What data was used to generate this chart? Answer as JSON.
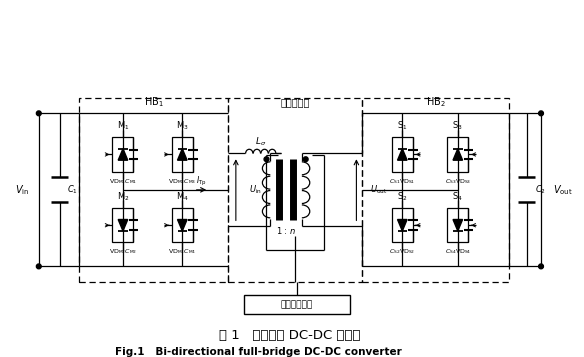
{
  "title_cn": "图 1   双向全桥 DC-DC 变换器",
  "title_en": "Fig.1   Bi-directional full-bridge DC-DC converter",
  "bg_color": "#ffffff",
  "line_color": "#000000",
  "label_hb1": "HB$_1$",
  "label_hb2": "HB$_2$",
  "label_transformer": "高频变压器",
  "label_control": "控制电压电路",
  "label_vin": "$V_{\\rm in}$",
  "label_vout": "$V_{\\rm out}$",
  "label_c1": "$C_1$",
  "label_c2": "$C_2$",
  "label_ls": "$L_{\\sigma}$",
  "label_uin": "$U_{\\rm in}$",
  "label_uout": "$U_{\\rm out}$",
  "label_itp": "$I_{\\rm Tp}$",
  "label_ratio": "1 : $n$",
  "label_m1": "M$_1$",
  "label_m2": "M$_2$",
  "label_m3": "M$_3$",
  "label_m4": "M$_4$",
  "label_s1": "S$_1$",
  "label_s2": "S$_2$",
  "label_s3": "S$_3$",
  "label_s4": "S$_4$",
  "label_vdm1cm1": "VD$_{\\rm M1}$$C_{\\rm M1}$",
  "label_vdm2cm2": "VD$_{\\rm M2}$$C_{\\rm M2}$",
  "label_vdm3cm3": "VD$_{\\rm M3}$$C_{\\rm M3}$",
  "label_vdm4cm4": "VD$_{\\rm M4}$$C_{\\rm M4}$",
  "label_cs1vds1": "$C_{\\rm S1}$VD$_{\\rm S1}$",
  "label_cs2vds2": "$C_{\\rm S2}$VD$_{\\rm S2}$",
  "label_cs3vds3": "$C_{\\rm S3}$VD$_{\\rm S3}$",
  "label_cs4vds4": "$C_{\\rm S4}$VD$_{\\rm S4}$"
}
